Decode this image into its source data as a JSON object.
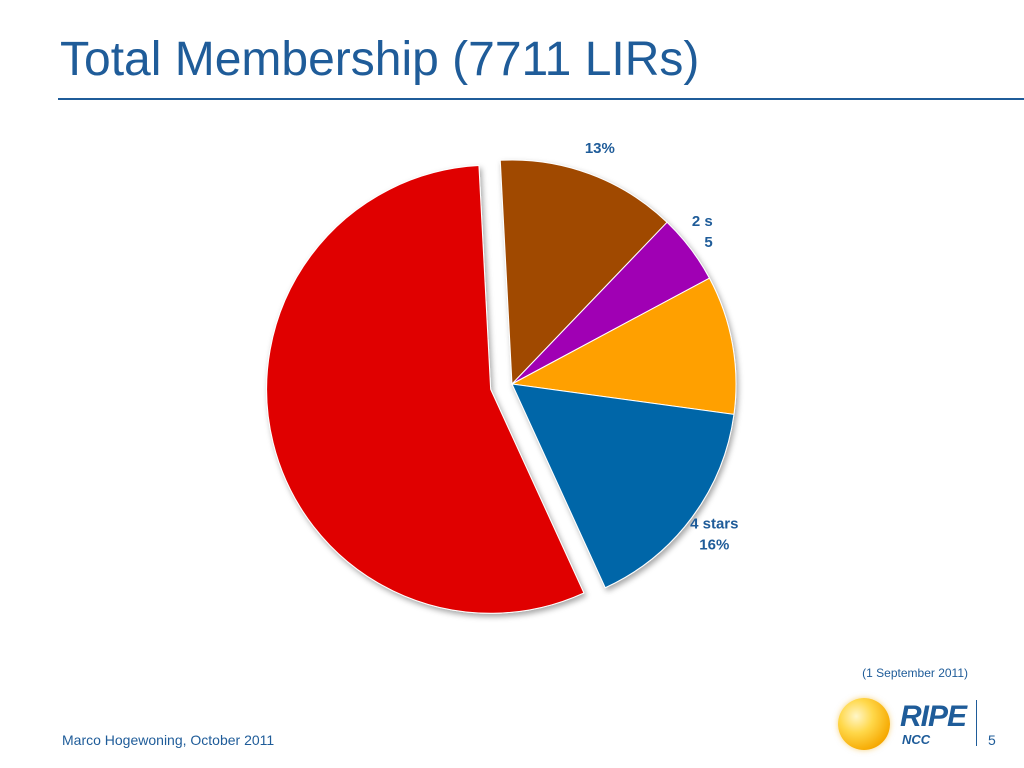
{
  "slide": {
    "title": "Total Membership (7711 LIRs)",
    "as_of": "(1 September 2011)",
    "footer": "Marco Hogewoning, October 2011",
    "page_number": "5",
    "logo": {
      "text": "RIPE",
      "subtext": "NCC"
    }
  },
  "chart_data": {
    "type": "pie",
    "title": "",
    "start_angle_deg": -3,
    "slices": [
      {
        "value": 13,
        "color": "#a04800",
        "label_lines": [
          "13%"
        ],
        "label_anchor": "middle"
      },
      {
        "value": 5,
        "color": "#a000b4",
        "label_lines": [
          "2 s",
          "5"
        ],
        "label_anchor": "end"
      },
      {
        "value": 10,
        "color": "#ffa000",
        "label_lines": [],
        "label_anchor": "middle"
      },
      {
        "value": 16,
        "color": "#0066a8",
        "label_lines": [
          "4 stars",
          "16%"
        ],
        "label_anchor": "middle"
      },
      {
        "value": 56,
        "color": "#e00000",
        "label_lines": [],
        "label_anchor": "middle",
        "exploded": true
      }
    ],
    "legend": "none",
    "shadow": true
  }
}
